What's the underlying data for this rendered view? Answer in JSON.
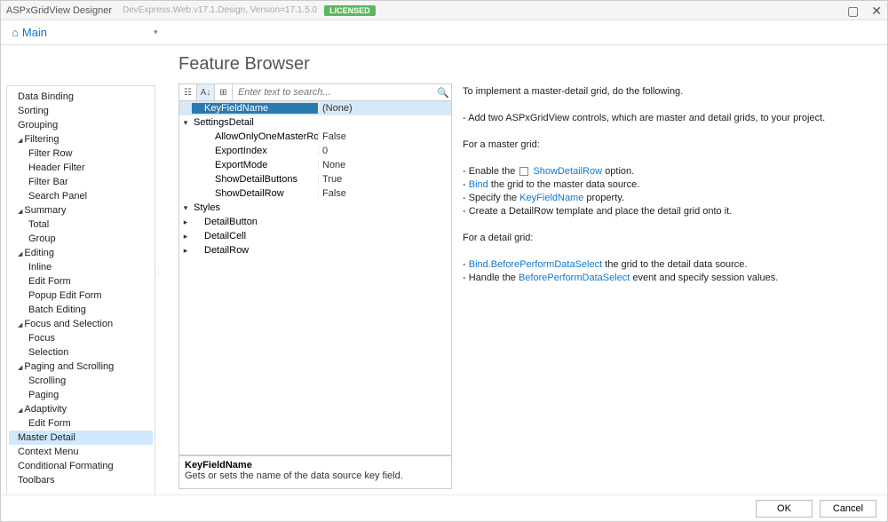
{
  "titlebar": {
    "appname": "ASPxGridView Designer",
    "subtext": "DevExpress.Web.v17.1.Design, Version=17.1.5.0",
    "badge": "LICENSED"
  },
  "nav": {
    "main": "Main"
  },
  "page_title": "Feature Browser",
  "tree": [
    {
      "label": "Data Binding",
      "level": 0
    },
    {
      "label": "Sorting",
      "level": 0
    },
    {
      "label": "Grouping",
      "level": 0
    },
    {
      "label": "Filtering",
      "level": 0,
      "parent": true
    },
    {
      "label": "Filter Row",
      "level": 1
    },
    {
      "label": "Header Filter",
      "level": 1
    },
    {
      "label": "Filter Bar",
      "level": 1
    },
    {
      "label": "Search Panel",
      "level": 1
    },
    {
      "label": "Summary",
      "level": 0,
      "parent": true
    },
    {
      "label": "Total",
      "level": 1
    },
    {
      "label": "Group",
      "level": 1
    },
    {
      "label": "Editing",
      "level": 0,
      "parent": true
    },
    {
      "label": "Inline",
      "level": 1
    },
    {
      "label": "Edit Form",
      "level": 1
    },
    {
      "label": "Popup Edit Form",
      "level": 1
    },
    {
      "label": "Batch Editing",
      "level": 1
    },
    {
      "label": "Focus and Selection",
      "level": 0,
      "parent": true
    },
    {
      "label": "Focus",
      "level": 1
    },
    {
      "label": "Selection",
      "level": 1
    },
    {
      "label": "Paging and Scrolling",
      "level": 0,
      "parent": true
    },
    {
      "label": "Scrolling",
      "level": 1
    },
    {
      "label": "Paging",
      "level": 1
    },
    {
      "label": "Adaptivity",
      "level": 0,
      "parent": true
    },
    {
      "label": "Edit Form",
      "level": 1
    },
    {
      "label": "Master Detail",
      "level": 0,
      "selected": true
    },
    {
      "label": "Context Menu",
      "level": 0
    },
    {
      "label": "Conditional Formating",
      "level": 0
    },
    {
      "label": "Toolbars",
      "level": 0
    }
  ],
  "search_placeholder": "Enter text to search...",
  "props": [
    {
      "exp": "",
      "name": "KeyFieldName",
      "val": "(None)",
      "indent": 1,
      "selected": true
    },
    {
      "exp": "▾",
      "name": "SettingsDetail",
      "val": "",
      "indent": 0,
      "cat": true
    },
    {
      "exp": "",
      "name": "AllowOnlyOneMasterRowExpanded",
      "val": "False",
      "indent": 2
    },
    {
      "exp": "",
      "name": "ExportIndex",
      "val": "0",
      "indent": 2
    },
    {
      "exp": "",
      "name": "ExportMode",
      "val": "None",
      "indent": 2
    },
    {
      "exp": "",
      "name": "ShowDetailButtons",
      "val": "True",
      "indent": 2
    },
    {
      "exp": "",
      "name": "ShowDetailRow",
      "val": "False",
      "indent": 2
    },
    {
      "exp": "▾",
      "name": "Styles",
      "val": "",
      "indent": 0,
      "cat": true
    },
    {
      "exp": "▸",
      "name": "DetailButton",
      "val": "",
      "indent": 1
    },
    {
      "exp": "▸",
      "name": "DetailCell",
      "val": "",
      "indent": 1
    },
    {
      "exp": "▸",
      "name": "DetailRow",
      "val": "",
      "indent": 1
    }
  ],
  "desc": {
    "name": "KeyFieldName",
    "text": "Gets or sets the name of the data source key field."
  },
  "help": {
    "intro": "To implement a master-detail grid, do the following.",
    "line2": "- Add two ASPxGridView controls, which are master and detail grids, to your project.",
    "master_label": "For a master grid:",
    "m1a": "- Enable the ",
    "m1link": "ShowDetailRow",
    "m1b": " option.",
    "m2a": "- ",
    "m2link": "Bind",
    "m2b": " the grid to the master data source.",
    "m3a": "- Specify the ",
    "m3link": "KeyFieldName",
    "m3b": " property.",
    "m4": "- Create a DetailRow template and place the detail grid onto it.",
    "detail_label": "For a detail grid:",
    "d1a": "- ",
    "d1link": "Bind.BeforePerformDataSelect",
    "d1b": " the grid to the detail data source.",
    "d2a": "- Handle the ",
    "d2link": "BeforePerformDataSelect",
    "d2b": " event and specify session values."
  },
  "footer": {
    "ok": "OK",
    "cancel": "Cancel"
  }
}
